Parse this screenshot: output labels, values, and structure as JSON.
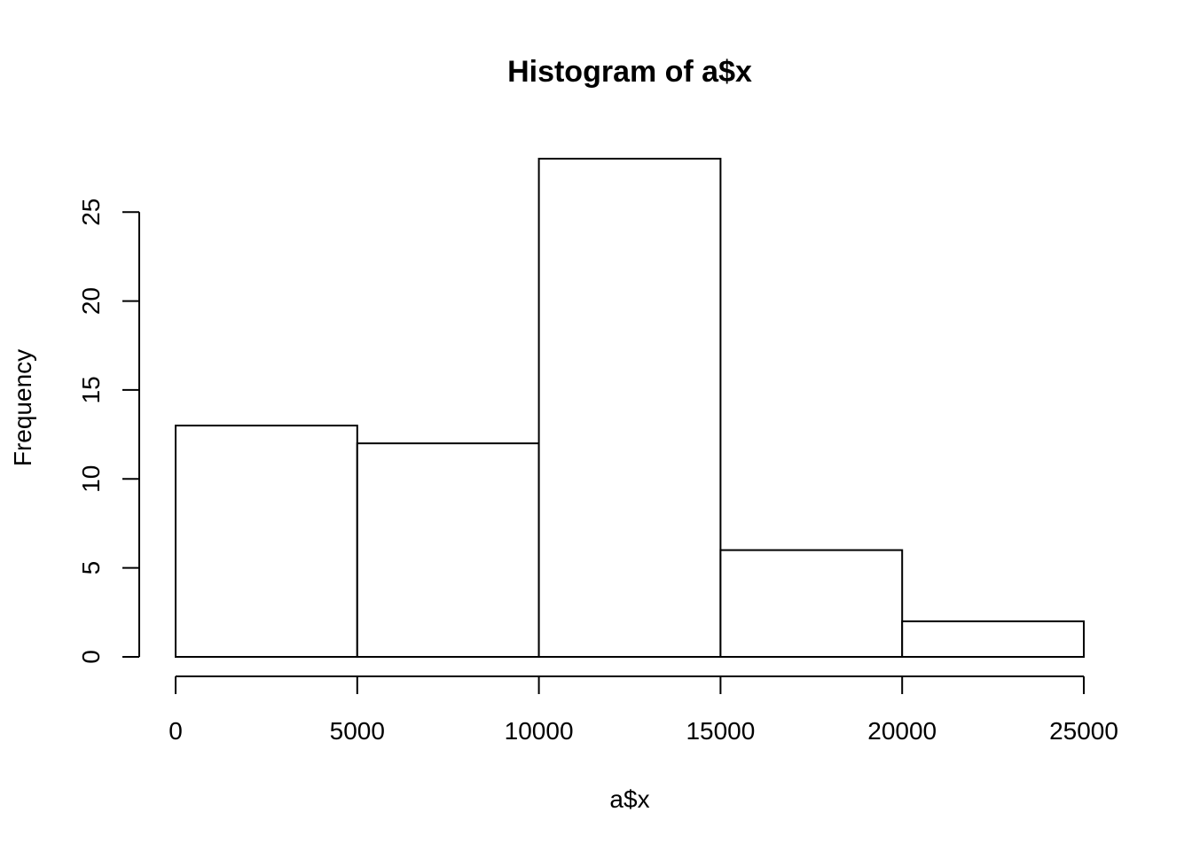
{
  "chart_data": {
    "type": "bar",
    "title": "Histogram of a$x",
    "xlabel": "a$x",
    "ylabel": "Frequency",
    "bins": [
      {
        "from": 0,
        "to": 5000,
        "count": 13
      },
      {
        "from": 5000,
        "to": 10000,
        "count": 12
      },
      {
        "from": 10000,
        "to": 15000,
        "count": 28
      },
      {
        "from": 15000,
        "to": 20000,
        "count": 6
      },
      {
        "from": 20000,
        "to": 25000,
        "count": 2
      }
    ],
    "xlim": [
      0,
      25000
    ],
    "ylim": [
      0,
      28
    ],
    "x_ticks": [
      0,
      5000,
      10000,
      15000,
      20000,
      25000
    ],
    "x_tick_labels": [
      "0",
      "5000",
      "10000",
      "15000",
      "20000",
      "25000"
    ],
    "y_ticks": [
      0,
      5,
      10,
      15,
      20,
      25
    ],
    "y_tick_labels": [
      "0",
      "5",
      "10",
      "15",
      "20",
      "25"
    ],
    "grid": false,
    "legend": "none",
    "bar_fill": "#ffffff",
    "bar_stroke": "#000000"
  }
}
